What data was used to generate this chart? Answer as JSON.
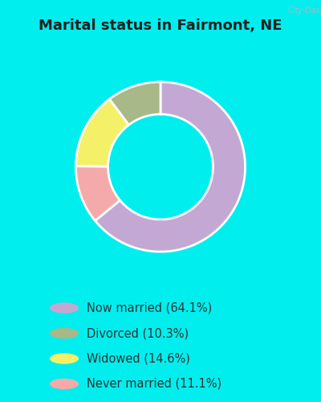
{
  "title": "Marital status in Fairmont, NE",
  "title_fontsize": 13,
  "background_color": "#00EEEE",
  "chart_bg_color": "#d6eedd",
  "categories": [
    "Now married",
    "Divorced",
    "Widowed",
    "Never married"
  ],
  "values": [
    64.1,
    10.3,
    14.6,
    11.1
  ],
  "colors": [
    "#c4a8d4",
    "#a8b888",
    "#f4f068",
    "#f4aaaa"
  ],
  "legend_labels": [
    "Now married (64.1%)",
    "Divorced (10.3%)",
    "Widowed (14.6%)",
    "Never married (11.1%)"
  ],
  "watermark": "City-Data.com",
  "donut_width": 0.38,
  "figsize": [
    4.0,
    5.0
  ],
  "dpi": 100,
  "draw_order": [
    0,
    3,
    2,
    1
  ]
}
